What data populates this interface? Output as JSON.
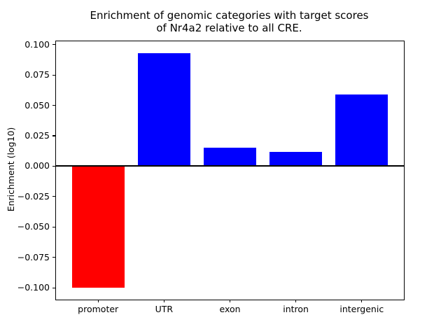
{
  "chart_data": {
    "type": "bar",
    "title_line1": "Enrichment of genomic categories with target scores",
    "title_line2": "of Nr4a2 relative to all CRE.",
    "title": "Enrichment of genomic categories with target scores of Nr4a2 relative to all CRE.",
    "xlabel": "",
    "ylabel": "Enrichment (log10)",
    "categories": [
      "promoter",
      "UTR",
      "exon",
      "intron",
      "intergenic"
    ],
    "values": [
      -0.1,
      0.093,
      0.015,
      0.012,
      0.059
    ],
    "bar_colors": [
      "#ff0000",
      "#0000ff",
      "#0000ff",
      "#0000ff",
      "#0000ff"
    ],
    "positive_color": "#0000ff",
    "negative_color": "#ff0000",
    "ylim": [
      -0.1097,
      0.1027
    ],
    "xlim": [
      -0.64,
      4.64
    ],
    "bar_width_fraction": 0.8,
    "yticks": [
      {
        "value": 0.1,
        "label": "0.100"
      },
      {
        "value": 0.075,
        "label": "0.075"
      },
      {
        "value": 0.05,
        "label": "0.050"
      },
      {
        "value": 0.025,
        "label": "0.025"
      },
      {
        "value": 0.0,
        "label": "0.000"
      },
      {
        "value": -0.025,
        "label": "−0.025"
      },
      {
        "value": -0.05,
        "label": "−0.050"
      },
      {
        "value": -0.075,
        "label": "−0.075"
      },
      {
        "value": -0.1,
        "label": "−0.100"
      }
    ],
    "grid": false,
    "legend": null,
    "zero_line_color": "#000000",
    "axis_color": "#000000",
    "background_color": "#ffffff"
  }
}
